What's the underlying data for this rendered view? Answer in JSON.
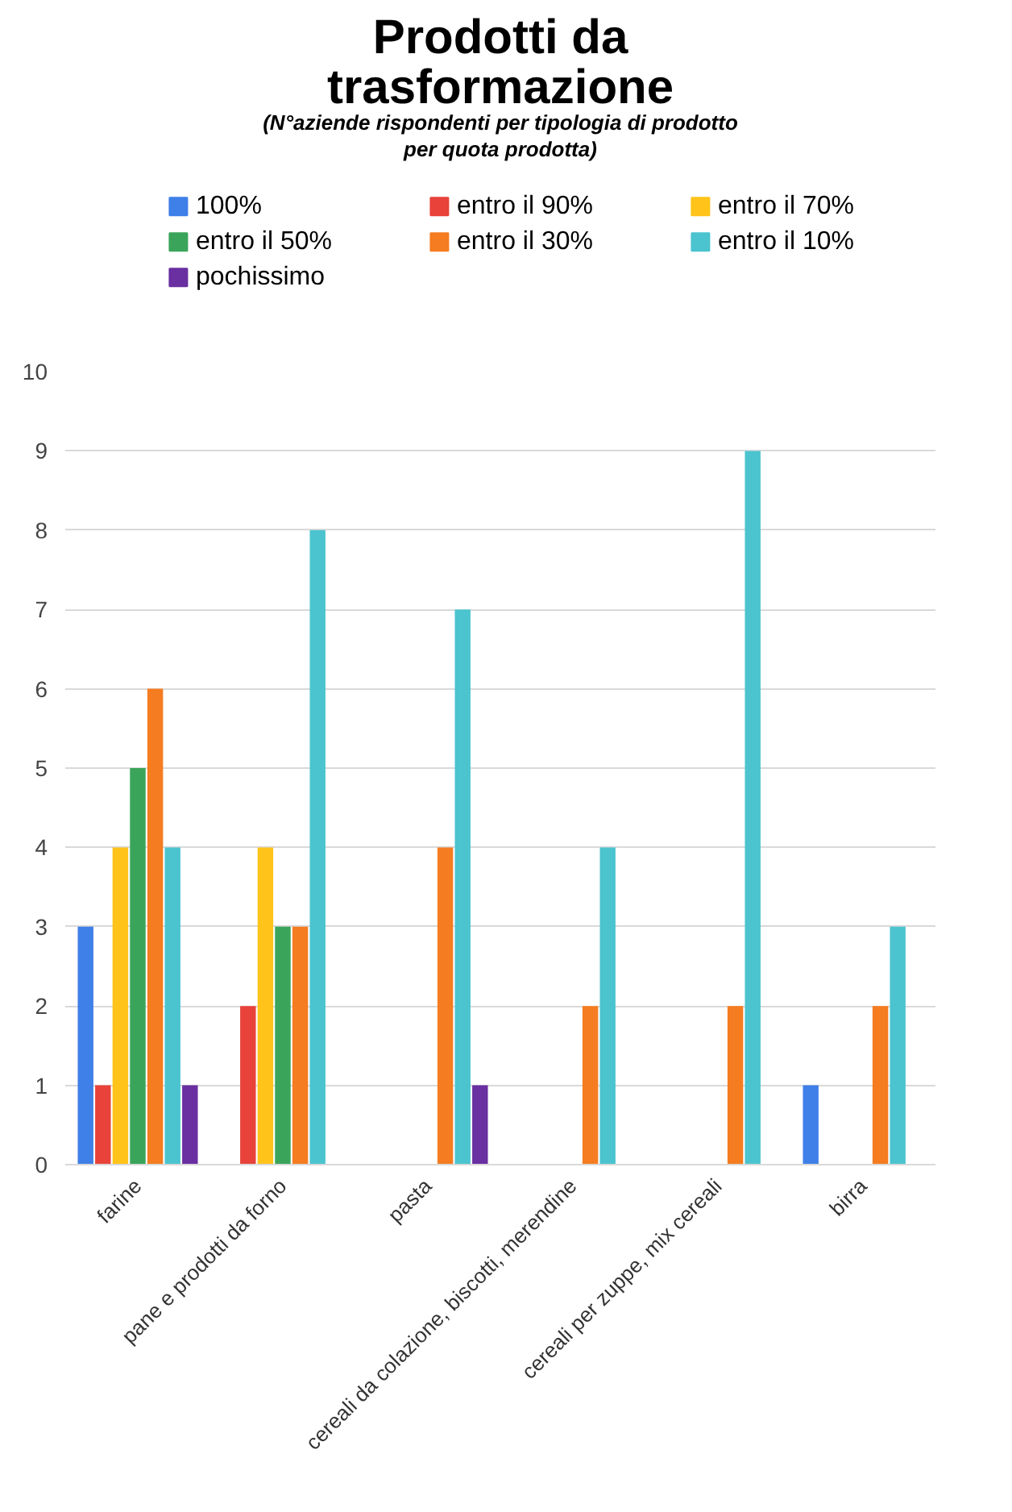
{
  "chart_data": {
    "type": "bar",
    "title": "Prodotti da trasformazione",
    "subtitle": "(N°aziende rispondenti per tipologia di prodotto per quota prodotta)",
    "categories": [
      "farine",
      "pane e prodotti da forno",
      "pasta",
      "cereali da colazione, biscotti, merendine",
      "cereali per zuppe, mix cereali",
      "birra"
    ],
    "series": [
      {
        "name": "100%",
        "color": "#3f7fe8",
        "values": [
          3,
          0,
          0,
          0,
          0,
          1
        ]
      },
      {
        "name": "entro il 90%",
        "color": "#e8423a",
        "values": [
          1,
          2,
          0,
          0,
          0,
          0
        ]
      },
      {
        "name": "entro il 70%",
        "color": "#ffc31a",
        "values": [
          4,
          4,
          0,
          0,
          0,
          0
        ]
      },
      {
        "name": "entro il 50%",
        "color": "#3aa55a",
        "values": [
          5,
          3,
          0,
          0,
          0,
          0
        ]
      },
      {
        "name": "entro il 30%",
        "color": "#f57c20",
        "values": [
          6,
          3,
          4,
          2,
          2,
          2
        ]
      },
      {
        "name": "entro il 10%",
        "color": "#4bc4cf",
        "values": [
          4,
          8,
          7,
          4,
          9,
          3
        ]
      },
      {
        "name": "pochissimo",
        "color": "#6a2fa0",
        "values": [
          1,
          0,
          1,
          0,
          0,
          0
        ]
      }
    ],
    "ylim": [
      0,
      10
    ],
    "yticks": [
      0,
      1,
      2,
      3,
      4,
      5,
      6,
      7,
      8,
      9,
      10
    ],
    "grid": "y",
    "legend": "top"
  }
}
